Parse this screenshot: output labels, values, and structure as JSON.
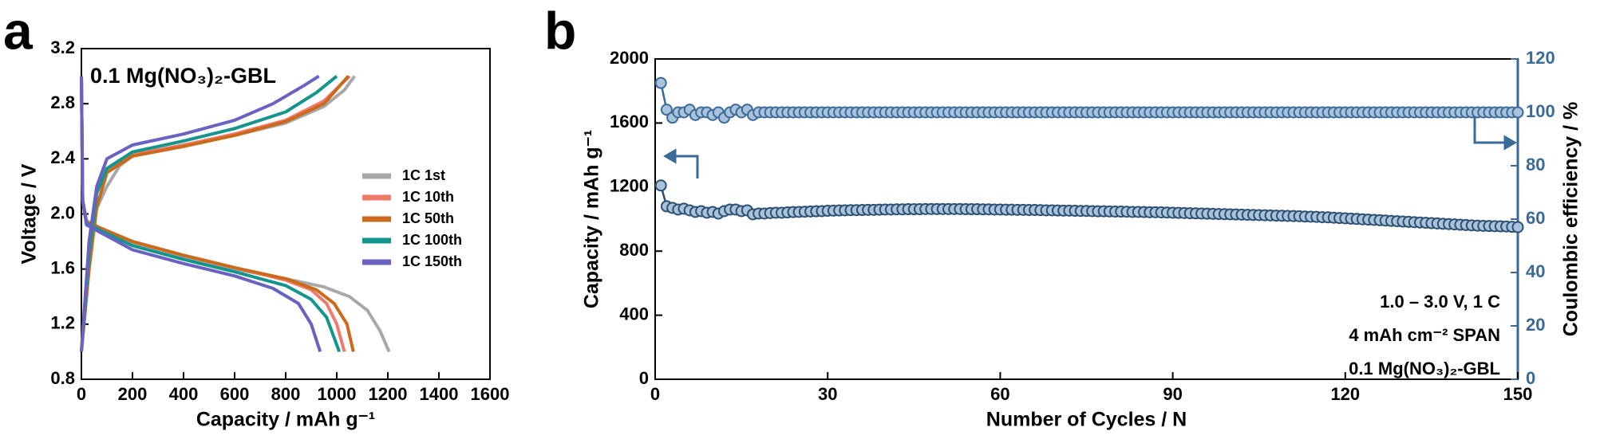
{
  "chart_data": [
    {
      "type": "line",
      "panel_label": "a",
      "title": "0.1 Mg(NO₃)₂-GBL",
      "x_label": "Capacity / mAh g⁻¹",
      "y_label": "Voltage / V",
      "xlim": [
        0,
        1600
      ],
      "xticks": [
        0,
        200,
        400,
        600,
        800,
        1000,
        1200,
        1400,
        1600
      ],
      "ylim": [
        0.8,
        3.2
      ],
      "yticks": [
        0.8,
        1.2,
        1.6,
        {
          "value": 2,
          "label": "2.0"
        },
        2.4,
        2.8,
        3.2
      ],
      "legend": "right",
      "series": [
        {
          "name": "1C 1st",
          "color": "#a8a8a8",
          "x": [
            0,
            5,
            20,
            200,
            400,
            600,
            800,
            950,
            1050,
            1120,
            1170,
            1205,
            null,
            0,
            20,
            50,
            100,
            150,
            200,
            400,
            600,
            800,
            950,
            1030,
            1070
          ],
          "values": [
            3,
            2.1,
            1.95,
            1.78,
            1.68,
            1.6,
            1.53,
            1.47,
            1.4,
            1.3,
            1.15,
            1,
            null,
            1,
            1.5,
            2,
            2.2,
            2.35,
            2.42,
            2.5,
            2.57,
            2.66,
            2.78,
            2.9,
            3
          ]
        },
        {
          "name": "1C 10th",
          "color": "#f07a6c",
          "x": [
            0,
            5,
            20,
            200,
            400,
            600,
            800,
            900,
            960,
            1000,
            1030,
            null,
            0,
            30,
            60,
            100,
            200,
            400,
            600,
            800,
            950,
            1050
          ],
          "values": [
            3,
            2.1,
            1.94,
            1.8,
            1.7,
            1.61,
            1.52,
            1.45,
            1.35,
            1.2,
            1,
            null,
            1,
            1.6,
            2.05,
            2.3,
            2.43,
            2.5,
            2.58,
            2.68,
            2.82,
            3
          ]
        },
        {
          "name": "1C 50th",
          "color": "#cc6a1c",
          "x": [
            0,
            5,
            20,
            200,
            400,
            600,
            800,
            920,
            990,
            1040,
            1065,
            null,
            0,
            30,
            60,
            100,
            200,
            400,
            600,
            800,
            950,
            1045
          ],
          "values": [
            3,
            2.1,
            1.94,
            1.8,
            1.7,
            1.61,
            1.53,
            1.45,
            1.35,
            1.2,
            1,
            null,
            1,
            1.6,
            2.05,
            2.3,
            2.42,
            2.49,
            2.57,
            2.67,
            2.8,
            3
          ]
        },
        {
          "name": "1C 100th",
          "color": "#13958e",
          "x": [
            0,
            5,
            20,
            200,
            400,
            600,
            800,
            900,
            960,
            1010,
            null,
            0,
            30,
            60,
            100,
            200,
            400,
            600,
            800,
            920,
            1000
          ],
          "values": [
            3,
            2.1,
            1.93,
            1.77,
            1.67,
            1.58,
            1.48,
            1.38,
            1.25,
            1,
            null,
            1,
            1.7,
            2.15,
            2.33,
            2.45,
            2.53,
            2.62,
            2.74,
            2.88,
            3
          ]
        },
        {
          "name": "1C 150th",
          "color": "#6a62c2",
          "x": [
            0,
            5,
            20,
            200,
            400,
            600,
            750,
            850,
            900,
            935,
            null,
            0,
            30,
            60,
            100,
            200,
            400,
            600,
            750,
            870,
            930
          ],
          "values": [
            3,
            2.1,
            1.92,
            1.74,
            1.64,
            1.55,
            1.46,
            1.35,
            1.2,
            1,
            null,
            1,
            1.8,
            2.2,
            2.4,
            2.5,
            2.58,
            2.68,
            2.8,
            2.93,
            3
          ]
        }
      ]
    },
    {
      "type": "line",
      "panel_label": "b",
      "x_label": "Number of Cycles / N",
      "y_label": "Capacity / mAh g⁻¹",
      "y2_label": "Coulombic efficiency / %",
      "xlim": [
        0,
        150
      ],
      "xticks": [
        0,
        30,
        60,
        90,
        120,
        150
      ],
      "ylim": [
        0,
        2000
      ],
      "yticks": [
        0,
        400,
        800,
        1200,
        1600,
        2000
      ],
      "y2lim": [
        0,
        120
      ],
      "y2ticks": [
        0,
        20,
        40,
        60,
        80,
        100,
        120
      ],
      "annotations": [
        "1.0 – 3.0 V, 1 C",
        "4 mAh cm⁻² SPAN",
        "0.1 Mg(NO₃)₂-GBL"
      ],
      "x": [
        1,
        2,
        3,
        4,
        5,
        6,
        7,
        8,
        9,
        10,
        11,
        12,
        13,
        14,
        15,
        16,
        17,
        18,
        19,
        20,
        21,
        22,
        23,
        24,
        25,
        26,
        27,
        28,
        29,
        30,
        31,
        32,
        33,
        34,
        35,
        36,
        37,
        38,
        39,
        40,
        41,
        42,
        43,
        44,
        45,
        46,
        47,
        48,
        49,
        50,
        51,
        52,
        53,
        54,
        55,
        56,
        57,
        58,
        59,
        60,
        61,
        62,
        63,
        64,
        65,
        66,
        67,
        68,
        69,
        70,
        71,
        72,
        73,
        74,
        75,
        76,
        77,
        78,
        79,
        80,
        81,
        82,
        83,
        84,
        85,
        86,
        87,
        88,
        89,
        90,
        91,
        92,
        93,
        94,
        95,
        96,
        97,
        98,
        99,
        100,
        101,
        102,
        103,
        104,
        105,
        106,
        107,
        108,
        109,
        110,
        111,
        112,
        113,
        114,
        115,
        116,
        117,
        118,
        119,
        120,
        121,
        122,
        123,
        124,
        125,
        126,
        127,
        128,
        129,
        130,
        131,
        132,
        133,
        134,
        135,
        136,
        137,
        138,
        139,
        140,
        141,
        142,
        143,
        144,
        145,
        146,
        147,
        148,
        149,
        150
      ],
      "series": [
        {
          "color": "#2d4f72",
          "values": [
            1210,
            1080,
            1070,
            1060,
            1065,
            1055,
            1045,
            1050,
            1040,
            1045,
            1035,
            1050,
            1060,
            1060,
            1050,
            1055,
            1030,
            1035,
            1035,
            1038,
            1040,
            1040,
            1042,
            1044,
            1045,
            1046,
            1048,
            1049,
            1050,
            1052,
            1053,
            1054,
            1055,
            1056,
            1056,
            1057,
            1058,
            1058,
            1059,
            1060,
            1060,
            1061,
            1061,
            1062,
            1062,
            1062,
            1063,
            1063,
            1063,
            1063,
            1063,
            1063,
            1063,
            1062,
            1062,
            1062,
            1061,
            1061,
            1060,
            1060,
            1059,
            1059,
            1058,
            1058,
            1057,
            1057,
            1056,
            1055,
            1055,
            1054,
            1053,
            1053,
            1052,
            1051,
            1051,
            1050,
            1049,
            1049,
            1048,
            1047,
            1047,
            1046,
            1045,
            1045,
            1044,
            1043,
            1043,
            1042,
            1041,
            1040,
            1039,
            1038,
            1037,
            1036,
            1035,
            1034,
            1033,
            1032,
            1031,
            1030,
            1029,
            1028,
            1027,
            1026,
            1025,
            1024,
            1023,
            1022,
            1021,
            1020,
            1019,
            1018,
            1016,
            1015,
            1014,
            1012,
            1011,
            1009,
            1007,
            1005,
            1003,
            1001,
            999,
            997,
            995,
            993,
            991,
            989,
            987,
            985,
            983,
            981,
            979,
            977,
            975,
            973,
            971,
            969,
            967,
            965,
            963,
            961,
            959,
            958,
            957,
            956,
            955,
            954,
            952,
            950
          ]
        },
        {
          "color": "#3a6a98",
          "axis": "y2",
          "values": [
            111,
            101,
            98,
            100,
            100,
            101,
            99,
            100,
            100,
            99,
            100,
            98,
            100,
            101,
            100,
            101,
            99,
            100,
            100,
            100,
            100,
            100,
            100,
            100,
            100,
            100,
            100,
            100,
            100,
            100,
            100,
            100,
            100,
            100,
            100,
            100,
            100,
            100,
            100,
            100,
            100,
            100,
            100,
            100,
            100,
            100,
            100,
            100,
            100,
            100,
            100,
            100,
            100,
            100,
            100,
            100,
            100,
            100,
            100,
            100,
            100,
            100,
            100,
            100,
            100,
            100,
            100,
            100,
            100,
            100,
            100,
            100,
            100,
            100,
            100,
            100,
            100,
            100,
            100,
            100,
            100,
            100,
            100,
            100,
            100,
            100,
            100,
            100,
            100,
            100,
            100,
            100,
            100,
            100,
            100,
            100,
            100,
            100,
            100,
            100,
            100,
            100,
            100,
            100,
            100,
            100,
            100,
            100,
            100,
            100,
            100,
            100,
            100,
            100,
            100,
            100,
            100,
            100,
            100,
            100,
            100,
            100,
            100,
            100,
            100,
            100,
            100,
            100,
            100,
            100,
            100,
            100,
            100,
            100,
            100,
            100,
            100,
            100,
            100,
            100,
            100,
            100,
            100,
            100,
            100,
            100,
            100,
            100,
            100,
            100
          ]
        }
      ]
    }
  ]
}
